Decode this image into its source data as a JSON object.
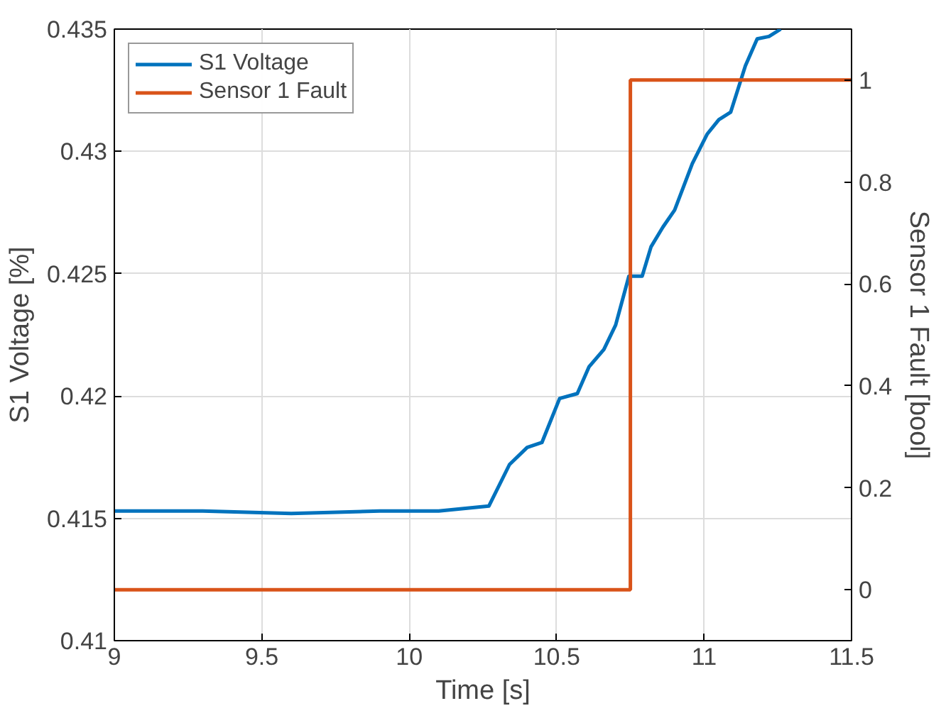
{
  "chart_data": {
    "type": "line",
    "xlabel": "Time [s]",
    "ylabel": "S1 Voltage [%]",
    "y2label": "Sensor 1 Fault [bool]",
    "xlim": [
      9,
      11.5
    ],
    "xticks": [
      9,
      9.5,
      10,
      10.5,
      11,
      11.5
    ],
    "ylim": [
      0.41,
      0.435
    ],
    "yticks": [
      0.41,
      0.415,
      0.42,
      0.425,
      0.43,
      0.435
    ],
    "y2lim": [
      -0.1,
      1.1
    ],
    "y2ticks": [
      0,
      0.2,
      0.4,
      0.6,
      0.8,
      1
    ],
    "grid": true,
    "legend": "top left",
    "series": [
      {
        "name": "S1 Voltage",
        "color": "#0072bd",
        "x": [
          9,
          9.3,
          9.6,
          9.9,
          10.1,
          10.27,
          10.34,
          10.4,
          10.45,
          10.51,
          10.57,
          10.61,
          10.66,
          10.7,
          10.745,
          10.79,
          10.82,
          10.86,
          10.9,
          10.96,
          11.01,
          11.05,
          11.09,
          11.14,
          11.18,
          11.22,
          11.26
        ],
        "values": [
          0.4153,
          0.4153,
          0.4152,
          0.4153,
          0.4153,
          0.4155,
          0.4172,
          0.4179,
          0.4181,
          0.4199,
          0.4201,
          0.4212,
          0.4219,
          0.4229,
          0.4249,
          0.4249,
          0.4261,
          0.4269,
          0.4276,
          0.4295,
          0.4307,
          0.4313,
          0.4316,
          0.4335,
          0.4346,
          0.4347,
          0.435
        ]
      },
      {
        "name": "Sensor 1 Fault",
        "color": "#d95319",
        "type": "step",
        "axis": "y2",
        "x": [
          9,
          10.75,
          11.5
        ],
        "values": [
          0,
          1,
          1
        ]
      }
    ]
  }
}
